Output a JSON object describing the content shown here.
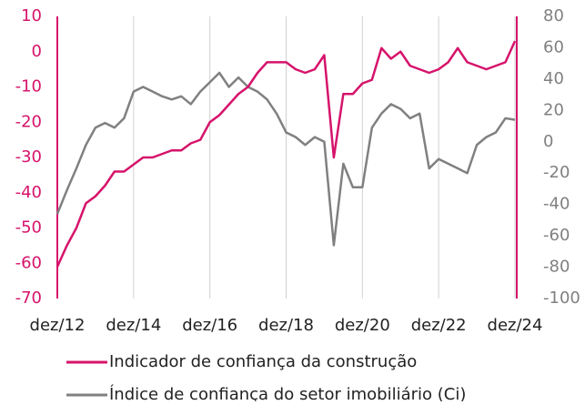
{
  "chart_data": {
    "type": "line",
    "categories": [
      "dez/12",
      null,
      null,
      null,
      null,
      null,
      null,
      null,
      "dez/14",
      null,
      null,
      null,
      null,
      null,
      null,
      null,
      "dez/16",
      null,
      null,
      null,
      null,
      null,
      null,
      null,
      "dez/18",
      null,
      null,
      null,
      null,
      null,
      null,
      null,
      "dez/20",
      null,
      null,
      null,
      null,
      null,
      null,
      null,
      "dez/22",
      null,
      null,
      null,
      null,
      null,
      null,
      null,
      "dez/24"
    ],
    "series": [
      {
        "name": "Indicador de confiança da construção",
        "color": "#d6136b",
        "values": [
          -61,
          -55,
          -50,
          -43,
          -41,
          -38,
          -34,
          -34,
          -32,
          -30,
          -30,
          -29,
          -28,
          -28,
          -26,
          -25,
          -20,
          -18,
          -15,
          -12,
          -10,
          -6,
          -3,
          -3,
          -3,
          -5,
          -6,
          -5,
          -1,
          -30,
          -12,
          -12,
          -9,
          -8,
          1,
          -2,
          0,
          -4,
          -5,
          -6,
          -5,
          -3,
          1,
          -3,
          -4,
          -5,
          -4,
          -3,
          3
        ]
      },
      {
        "name": "Índice de confiança do setor imobiliário (Ci)",
        "color": "#808080",
        "axis": "y2",
        "values": [
          -46,
          -31,
          -17,
          -2,
          9,
          12,
          9,
          15,
          32,
          35,
          32,
          29,
          27,
          29,
          24,
          32,
          38,
          44,
          35,
          41,
          35,
          32,
          27,
          18,
          6,
          3,
          -2,
          3,
          0,
          -66,
          -14,
          -29,
          -29,
          9,
          18,
          24,
          21,
          15,
          18,
          -17,
          -11,
          -14,
          -17,
          -20,
          -2,
          3,
          6,
          15,
          14
        ]
      }
    ],
    "ylim": [
      -70,
      10
    ],
    "yticks": [
      10,
      0,
      -10,
      -20,
      -30,
      -40,
      -50,
      -60,
      -70
    ],
    "y2lim": [
      -100,
      80
    ],
    "y2ticks": [
      80,
      60,
      40,
      20,
      0,
      -20,
      -40,
      -60,
      -80,
      -100
    ],
    "grid": true,
    "legend": "bottom"
  }
}
